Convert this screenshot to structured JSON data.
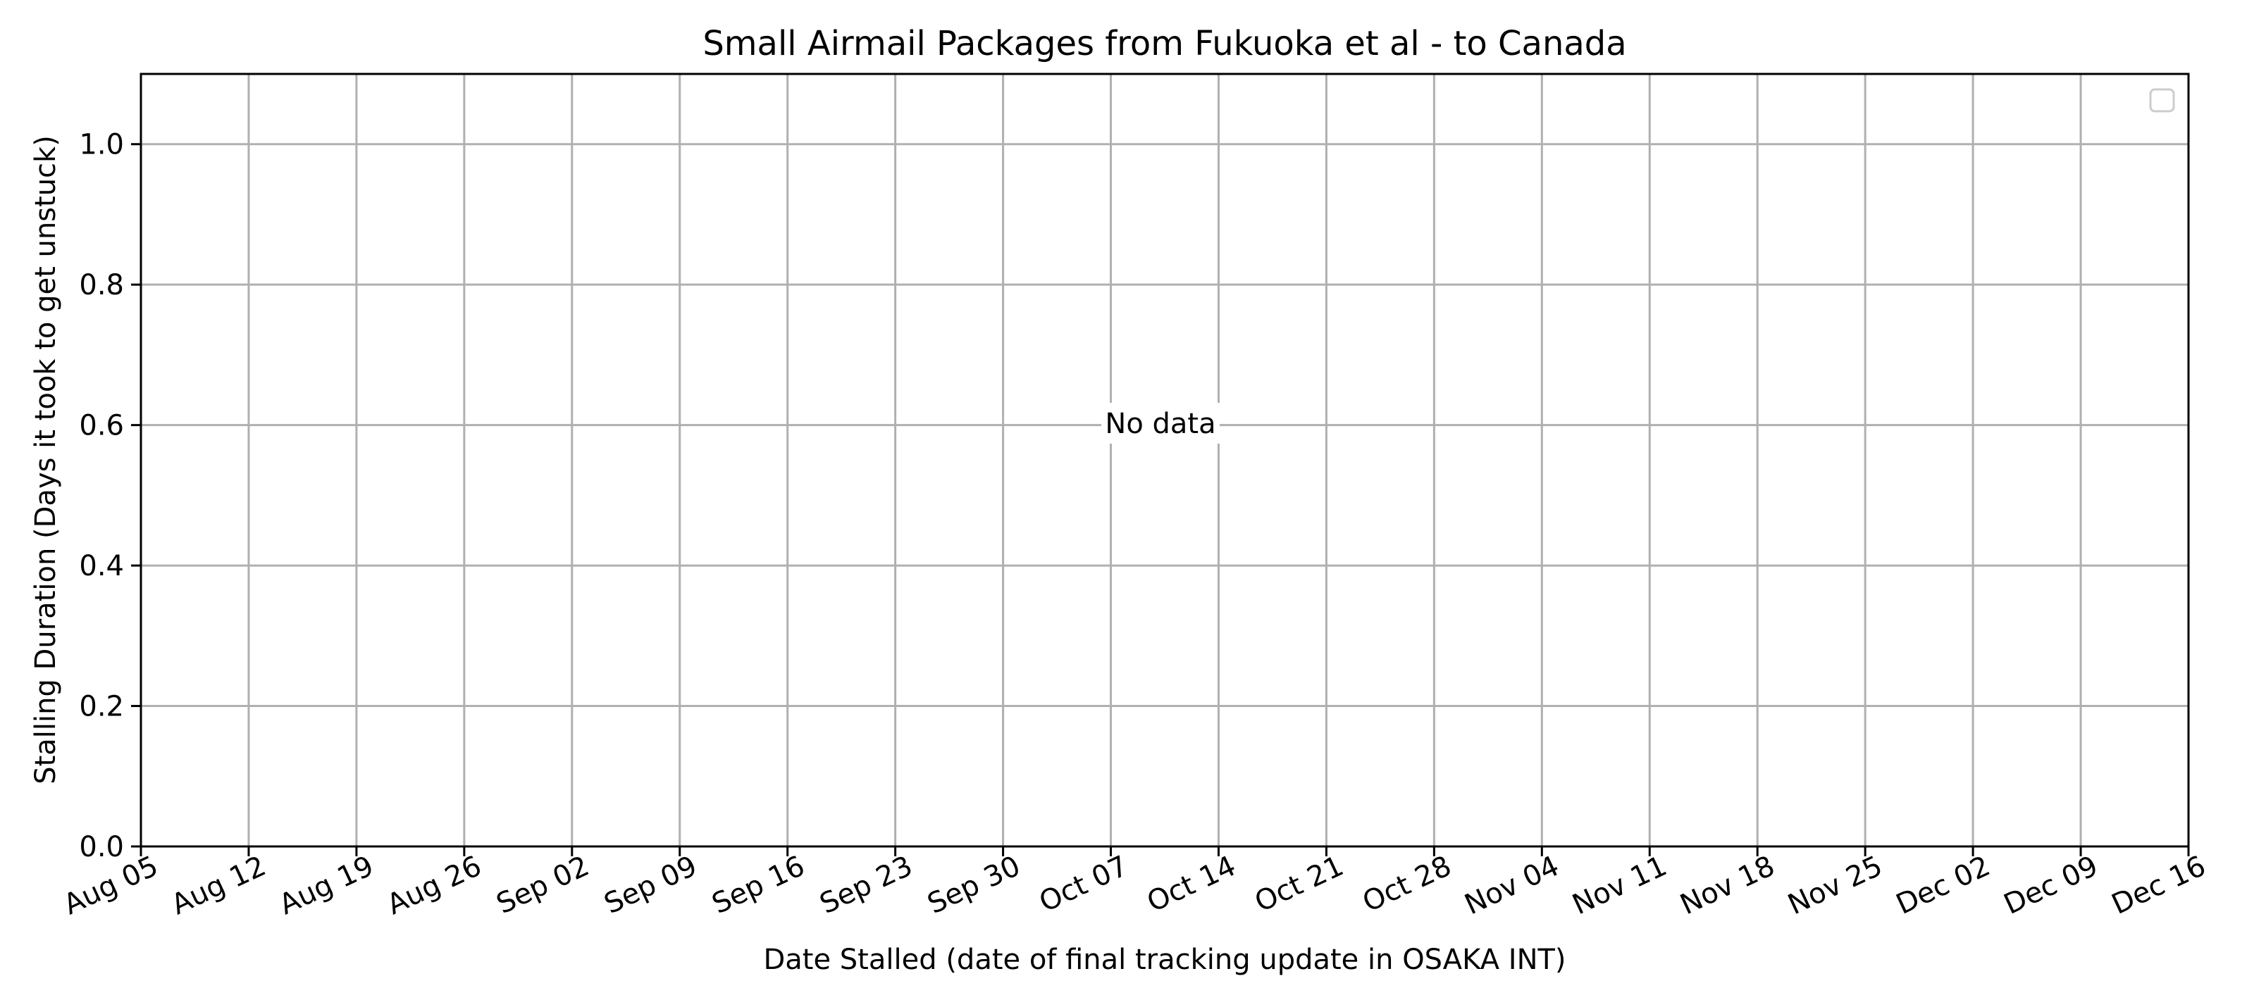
{
  "chart_data": {
    "type": "line",
    "title": "Small Airmail Packages from Fukuoka et al - to Canada",
    "xlabel": "Date Stalled (date of final tracking update in OSAKA INT)",
    "ylabel": "Stalling Duration (Days it took to get unstuck)",
    "x_ticks": [
      "Aug 05",
      "Aug 12",
      "Aug 19",
      "Aug 26",
      "Sep 02",
      "Sep 09",
      "Sep 16",
      "Sep 23",
      "Sep 30",
      "Oct 07",
      "Oct 14",
      "Oct 21",
      "Oct 28",
      "Nov 04",
      "Nov 11",
      "Nov 18",
      "Nov 25",
      "Dec 02",
      "Dec 09",
      "Dec 16"
    ],
    "y_ticks": [
      "0.0",
      "0.2",
      "0.4",
      "0.6",
      "0.8",
      "1.0"
    ],
    "ylim": [
      0,
      1.1
    ],
    "grid": true,
    "legend_position": "upper right",
    "legend_entries": [],
    "series": [],
    "annotation": "No data",
    "colors": {
      "grid": "#b0b0b0",
      "frame": "#000000",
      "background": "#ffffff"
    }
  }
}
